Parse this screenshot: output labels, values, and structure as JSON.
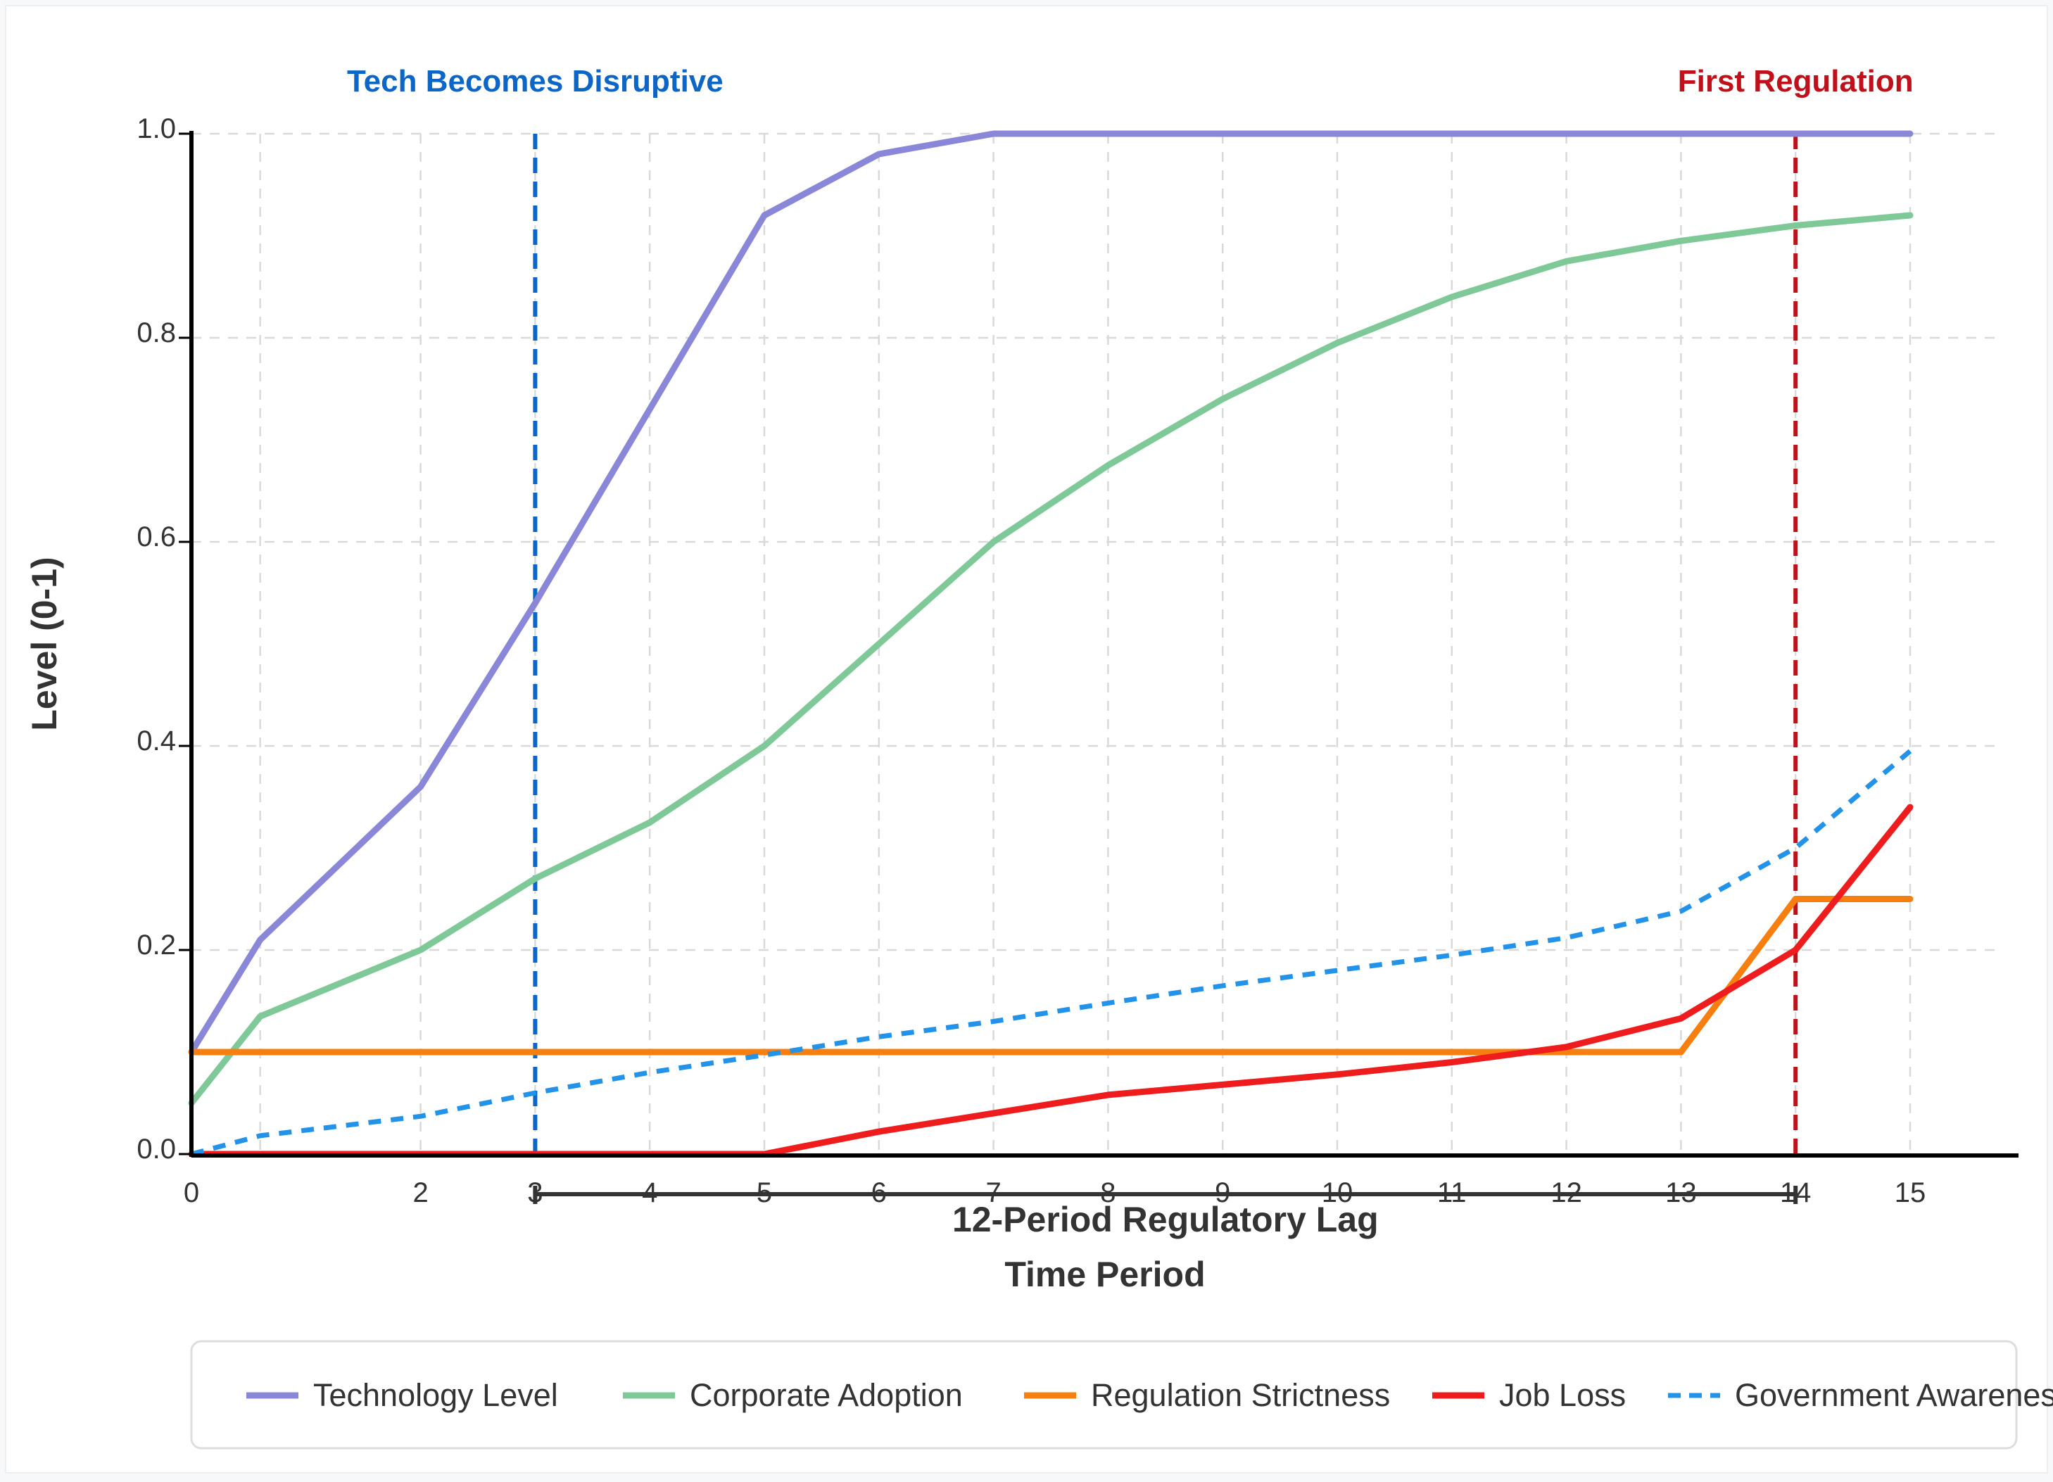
{
  "chart_data": {
    "type": "line",
    "xlabel": "Time Period",
    "ylabel": "Level (0-1)",
    "xlim": [
      0,
      15
    ],
    "ylim": [
      0,
      1
    ],
    "x_ticks": [
      "0",
      "2",
      "3",
      "4",
      "5",
      "6",
      "7",
      "8",
      "9",
      "10",
      "11",
      "12",
      "13",
      "14",
      "15"
    ],
    "x_tick_values": [
      0,
      2,
      3,
      4,
      5,
      6,
      7,
      8,
      9,
      10,
      11,
      12,
      13,
      14,
      15
    ],
    "y_ticks": [
      "0.0",
      "0.2",
      "0.4",
      "0.6",
      "0.8",
      "1.0"
    ],
    "y_tick_values": [
      0,
      0.2,
      0.4,
      0.6,
      0.8,
      1.0
    ],
    "grid": true,
    "legend_position": "bottom",
    "annotations": [
      {
        "type": "vline",
        "x": 3,
        "label": "Tech Becomes Disruptive",
        "color": "#0b66c8"
      },
      {
        "type": "vline",
        "x": 14,
        "label": "First Regulation",
        "color": "#c0101a"
      },
      {
        "type": "span",
        "x_from": 3,
        "x_to": 14,
        "label": "12-Period Regulatory Lag"
      }
    ],
    "series": [
      {
        "name": "Technology Level",
        "color": "#8b87d8",
        "style": "solid",
        "x": [
          0,
          0.6,
          2,
          3,
          4,
          5,
          6,
          7,
          8,
          9,
          10,
          11,
          12,
          13,
          14,
          15
        ],
        "values": [
          0.1,
          0.21,
          0.36,
          0.54,
          0.73,
          0.92,
          0.98,
          1.0,
          1.0,
          1.0,
          1.0,
          1.0,
          1.0,
          1.0,
          1.0,
          1.0
        ]
      },
      {
        "name": "Corporate Adoption",
        "color": "#7fc998",
        "style": "solid",
        "x": [
          0,
          0.6,
          2,
          3,
          4,
          5,
          6,
          7,
          8,
          9,
          10,
          11,
          12,
          13,
          14,
          15
        ],
        "values": [
          0.05,
          0.135,
          0.2,
          0.27,
          0.325,
          0.4,
          0.5,
          0.6,
          0.675,
          0.74,
          0.795,
          0.84,
          0.875,
          0.895,
          0.91,
          0.92
        ]
      },
      {
        "name": "Regulation Strictness",
        "color": "#f77f10",
        "style": "solid",
        "x": [
          0,
          13,
          14,
          15
        ],
        "values": [
          0.1,
          0.1,
          0.25,
          0.25
        ]
      },
      {
        "name": "Job Loss",
        "color": "#ee1c1c",
        "style": "solid",
        "x": [
          0,
          5,
          6,
          7,
          8,
          9,
          10,
          11,
          12,
          13,
          14,
          15
        ],
        "values": [
          0.0,
          0.0,
          0.022,
          0.04,
          0.058,
          0.068,
          0.078,
          0.09,
          0.105,
          0.133,
          0.2,
          0.34
        ]
      },
      {
        "name": "Government Awareness",
        "legend_label": "Government Awarenes",
        "color": "#2293e8",
        "style": "dashed",
        "x": [
          0,
          0.6,
          2,
          3,
          4,
          5,
          6,
          7,
          8,
          9,
          10,
          11,
          12,
          13,
          14,
          15
        ],
        "values": [
          0.0,
          0.018,
          0.037,
          0.06,
          0.08,
          0.097,
          0.115,
          0.13,
          0.148,
          0.165,
          0.18,
          0.195,
          0.212,
          0.238,
          0.3,
          0.395
        ]
      }
    ]
  }
}
